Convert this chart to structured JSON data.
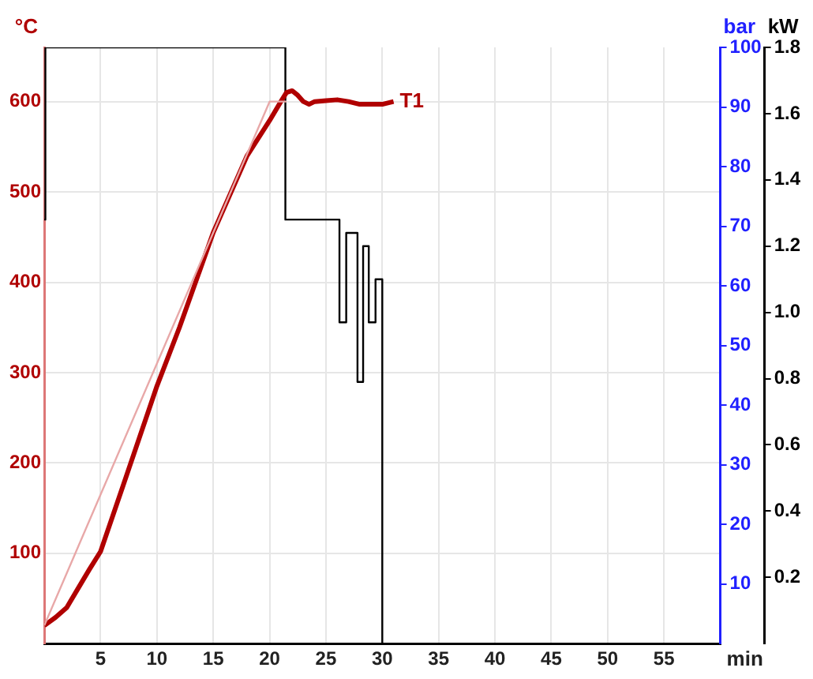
{
  "chart_data": {
    "type": "line",
    "xlabel": "min",
    "ylabel": "°C",
    "y2label": "bar",
    "y3label": "kW",
    "xlim": [
      0,
      60
    ],
    "xticks": [
      5,
      10,
      15,
      20,
      25,
      30,
      35,
      40,
      45,
      50,
      55
    ],
    "ylim": [
      0,
      660
    ],
    "yticks": [
      100,
      200,
      300,
      400,
      500,
      600
    ],
    "y2lim": [
      0,
      100
    ],
    "y2ticks": [
      10,
      20,
      30,
      40,
      50,
      60,
      70,
      80,
      90,
      100
    ],
    "y3lim": [
      0,
      1.8
    ],
    "y3ticks": [
      0.2,
      0.4,
      0.6,
      0.8,
      {
        "value": 1,
        "label": "1.0"
      },
      1.2,
      1.4,
      1.6,
      1.8
    ],
    "grid": true,
    "legend": false,
    "marker": "none",
    "series": [
      {
        "color": "#e8a8a8",
        "x": [
          0,
          20,
          21.5
        ],
        "values": [
          20,
          600,
          600
        ]
      },
      {
        "name": "T1",
        "color": "#b00000",
        "x": [
          0,
          1,
          2,
          3,
          4,
          5,
          7,
          10,
          12,
          15,
          18,
          20,
          21,
          21.5,
          22,
          22.5,
          23,
          23.5,
          24,
          25,
          26,
          27,
          28,
          29,
          30,
          31
        ],
        "values": [
          20,
          29,
          40,
          61,
          82,
          102,
          175,
          285,
          350,
          455,
          540,
          579,
          600,
          610,
          612,
          607,
          600,
          597,
          600,
          601,
          602,
          600,
          597,
          597,
          597,
          600
        ]
      },
      {
        "type": "step",
        "axis": "y3",
        "color": "#000000",
        "x": [
          0,
          0.1,
          21.4,
          26.2,
          26.8,
          27.8,
          28.3,
          28.8,
          29.4,
          30
        ],
        "values": [
          1.28,
          1.8,
          1.28,
          0.97,
          1.24,
          0.79,
          1.2,
          0.97,
          1.1,
          0
        ]
      }
    ]
  }
}
